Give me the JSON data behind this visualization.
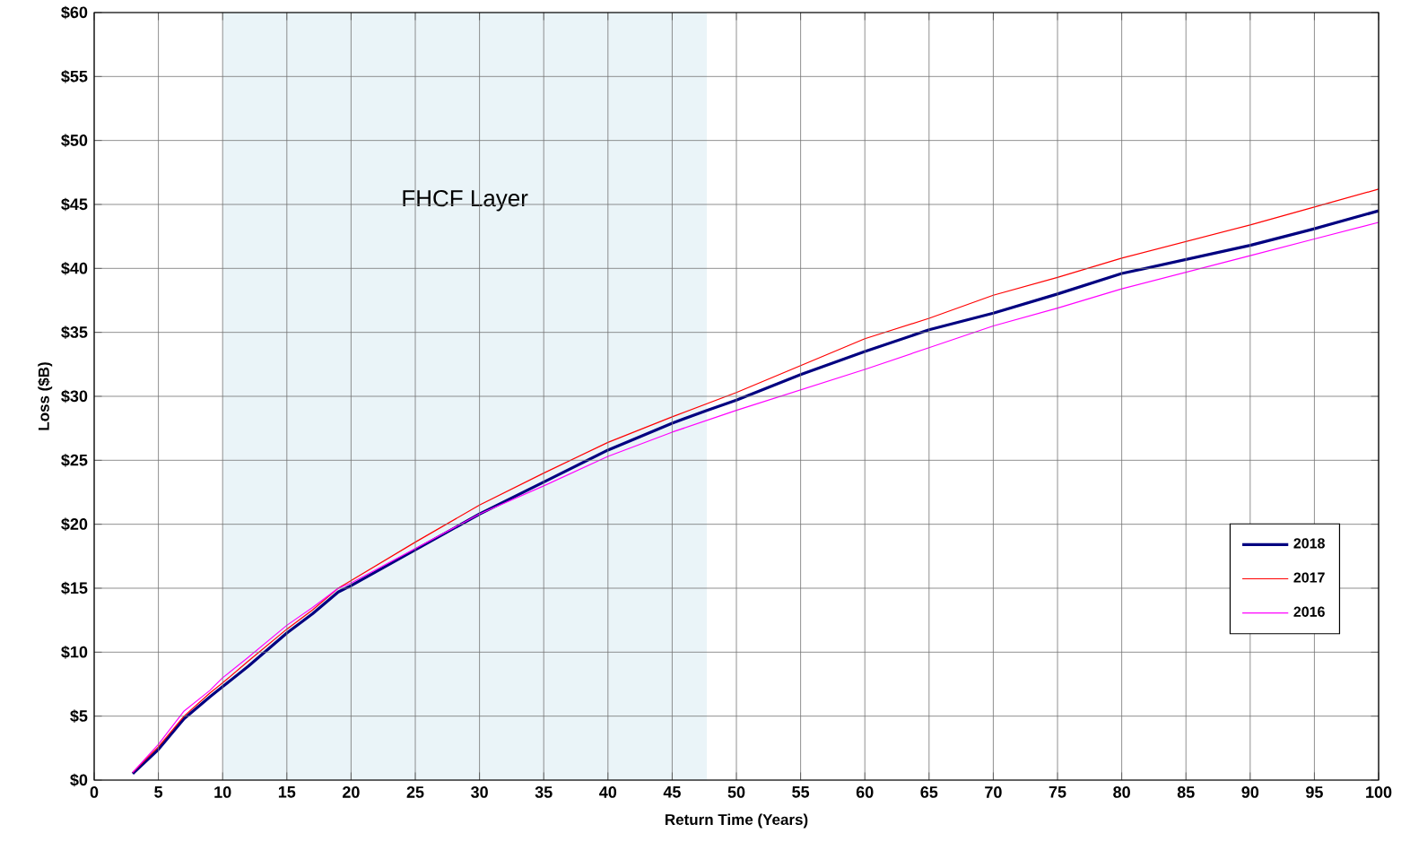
{
  "chart_data": {
    "type": "line",
    "xlabel": "Return Time (Years)",
    "ylabel": "Loss ($B)",
    "xlim": [
      0,
      100
    ],
    "ylim": [
      0,
      60
    ],
    "xticks": [
      0,
      5,
      10,
      15,
      20,
      25,
      30,
      35,
      40,
      45,
      50,
      55,
      60,
      65,
      70,
      75,
      80,
      85,
      90,
      95,
      100
    ],
    "yticks": [
      {
        "value": 0,
        "label": "$0"
      },
      {
        "value": 5,
        "label": "$5"
      },
      {
        "value": 10,
        "label": "$10"
      },
      {
        "value": 15,
        "label": "$15"
      },
      {
        "value": 20,
        "label": "$20"
      },
      {
        "value": 25,
        "label": "$25"
      },
      {
        "value": 30,
        "label": "$30"
      },
      {
        "value": 35,
        "label": "$35"
      },
      {
        "value": 40,
        "label": "$40"
      },
      {
        "value": 45,
        "label": "$45"
      },
      {
        "value": 50,
        "label": "$50"
      },
      {
        "value": 55,
        "label": "$55"
      },
      {
        "value": 60,
        "label": "$60"
      }
    ],
    "grid": true,
    "legend": "bottom right",
    "bands": [
      {
        "axis": "x",
        "from": 10,
        "to": 47.7,
        "label": "FHCF Layer",
        "color": "#eaf4f8"
      }
    ],
    "series": [
      {
        "name": "2018",
        "color": "#000080",
        "x": [
          3,
          5,
          7,
          9,
          10,
          12,
          15,
          17,
          19,
          20,
          25,
          30,
          35,
          40,
          45,
          47.7,
          50,
          55,
          60,
          65,
          70,
          75,
          80,
          85,
          90,
          95,
          100
        ],
        "values": [
          0.5,
          2.4,
          4.8,
          6.5,
          7.3,
          8.9,
          11.5,
          13,
          14.7,
          15.2,
          18,
          20.8,
          23.3,
          25.8,
          27.9,
          28.9,
          29.7,
          31.7,
          33.5,
          35.2,
          36.5,
          38,
          39.6,
          40.7,
          41.8,
          43.1,
          44.5
        ]
      },
      {
        "name": "2017",
        "color": "#ff0000",
        "x": [
          3,
          5,
          7,
          9,
          10,
          12,
          15,
          17,
          19,
          20,
          25,
          30,
          35,
          40,
          45,
          50,
          55,
          60,
          65,
          70,
          75,
          80,
          85,
          90,
          95,
          100
        ],
        "values": [
          0.6,
          2.6,
          5,
          6.8,
          7.6,
          9.3,
          11.8,
          13.3,
          15,
          15.6,
          18.6,
          21.5,
          24,
          26.4,
          28.4,
          30.3,
          32.4,
          34.5,
          36.1,
          37.9,
          39.3,
          40.8,
          42.1,
          43.4,
          44.8,
          46.2
        ]
      },
      {
        "name": "2016",
        "color": "#ff00ff",
        "x": [
          3,
          5,
          7,
          9,
          10,
          12,
          15,
          17,
          19,
          20,
          25,
          30,
          35,
          40,
          45,
          50,
          55,
          60,
          65,
          70,
          75,
          80,
          85,
          90,
          95,
          100
        ],
        "values": [
          0.6,
          2.8,
          5.4,
          7,
          8,
          9.6,
          12.1,
          13.5,
          15,
          15.4,
          18.1,
          20.8,
          23,
          25.3,
          27.2,
          28.9,
          30.5,
          32.1,
          33.8,
          35.5,
          36.9,
          38.4,
          39.7,
          41,
          42.3,
          43.6
        ]
      }
    ]
  }
}
